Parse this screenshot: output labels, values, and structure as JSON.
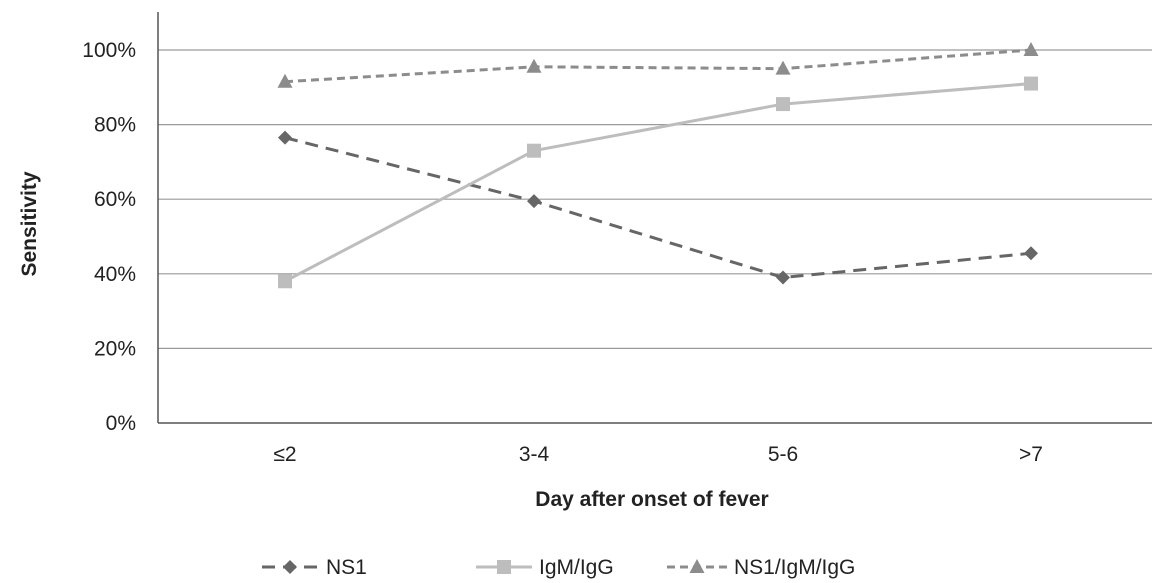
{
  "chart_data": {
    "type": "line",
    "title": "",
    "xlabel": "Day after onset of fever",
    "ylabel": "Sensitivity",
    "categories": [
      "≤2",
      "3-4",
      "5-6",
      ">7"
    ],
    "y_ticks": [
      "0%",
      "20%",
      "40%",
      "60%",
      "80%",
      "100%"
    ],
    "ylim": [
      0,
      100
    ],
    "grid": true,
    "legend_position": "bottom",
    "series": [
      {
        "name": "NS1",
        "values": [
          76.5,
          59.5,
          39,
          45.5
        ],
        "color": "#666666",
        "line_style": "dashed",
        "marker": "diamond"
      },
      {
        "name": "IgM/IgG",
        "values": [
          38,
          73,
          85.5,
          91
        ],
        "color": "#bdbdbd",
        "line_style": "solid",
        "marker": "square"
      },
      {
        "name": "NS1/IgM/IgG",
        "values": [
          91.5,
          95.5,
          95,
          100
        ],
        "color": "#8c8c8c",
        "line_style": "short-dashed",
        "marker": "triangle"
      }
    ]
  }
}
